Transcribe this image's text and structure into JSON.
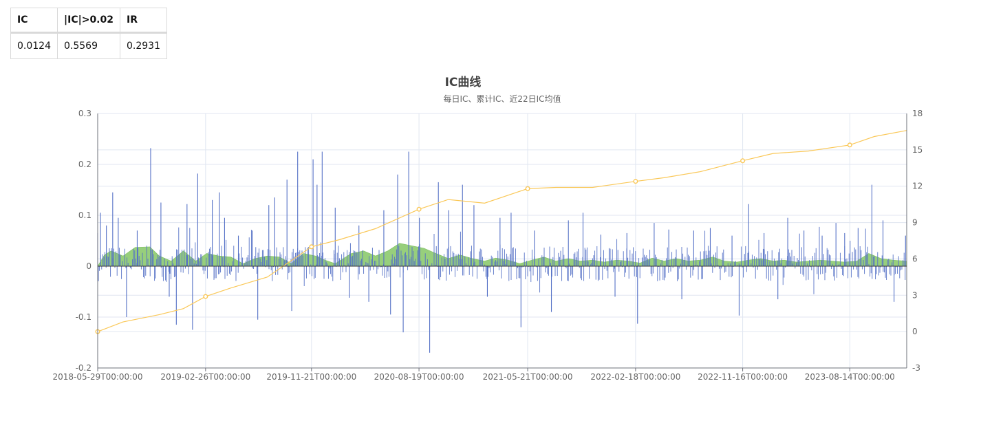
{
  "stats_table": {
    "headers": [
      "IC",
      "|IC|>0.02",
      "IR"
    ],
    "values": [
      "0.0124",
      "0.5569",
      "0.2931"
    ]
  },
  "chart_data": {
    "type": "bar",
    "title": "IC曲线",
    "subtitle": "每日IC、累计IC、近22日IC均值",
    "x_tick_labels": [
      "2018-05-29T00:00:00",
      "2019-02-26T00:00:00",
      "2019-11-21T00:00:00",
      "2020-08-19T00:00:00",
      "2021-05-21T00:00:00",
      "2022-02-18T00:00:00",
      "2022-11-16T00:00:00",
      "2023-08-14T00:00:00"
    ],
    "x_range": [
      "2018-05-29",
      "2024-01-05"
    ],
    "y_left": {
      "range": [
        -0.2,
        0.3
      ],
      "ticks": [
        "-0.2",
        "-0.1",
        "0",
        "0.1",
        "0.2",
        "0.3"
      ]
    },
    "y_right": {
      "range": [
        -3,
        18
      ],
      "ticks": [
        "-3",
        "0",
        "3",
        "6",
        "9",
        "12",
        "15",
        "18"
      ]
    },
    "grid": true,
    "colors": {
      "daily": "#5470c6",
      "rolling": "#91cc75",
      "cumulative": "#fac858"
    },
    "series": [
      {
        "kind": "bar",
        "axis": "left",
        "color": "#5470c6",
        "description_points": "daily IC spikes (date, value)",
        "spikes": [
          [
            "2018-05-29",
            0.065
          ],
          [
            "2018-06-05",
            0.105
          ],
          [
            "2018-06-20",
            0.08
          ],
          [
            "2018-07-06",
            0.145
          ],
          [
            "2018-07-20",
            0.095
          ],
          [
            "2018-08-10",
            -0.1
          ],
          [
            "2018-09-06",
            0.07
          ],
          [
            "2018-10-10",
            0.232
          ],
          [
            "2018-11-05",
            0.125
          ],
          [
            "2018-11-26",
            -0.06
          ],
          [
            "2018-12-14",
            -0.115
          ],
          [
            "2019-01-10",
            0.122
          ],
          [
            "2019-01-24",
            -0.125
          ],
          [
            "2019-02-06",
            0.182
          ],
          [
            "2019-03-15",
            0.13
          ],
          [
            "2019-04-02",
            0.145
          ],
          [
            "2019-04-15",
            0.095
          ],
          [
            "2019-05-20",
            0.06
          ],
          [
            "2019-06-24",
            0.07
          ],
          [
            "2019-07-08",
            -0.105
          ],
          [
            "2019-08-05",
            0.12
          ],
          [
            "2019-08-20",
            0.135
          ],
          [
            "2019-09-20",
            0.17
          ],
          [
            "2019-10-02",
            -0.088
          ],
          [
            "2019-10-17",
            0.225
          ],
          [
            "2019-11-25",
            0.21
          ],
          [
            "2019-12-05",
            0.16
          ],
          [
            "2019-12-18",
            0.225
          ],
          [
            "2020-01-20",
            0.115
          ],
          [
            "2020-02-25",
            -0.062
          ],
          [
            "2020-03-20",
            0.08
          ],
          [
            "2020-04-14",
            -0.07
          ],
          [
            "2020-05-22",
            0.11
          ],
          [
            "2020-06-08",
            -0.095
          ],
          [
            "2020-06-26",
            0.18
          ],
          [
            "2020-07-10",
            -0.13
          ],
          [
            "2020-07-24",
            0.225
          ],
          [
            "2020-08-20",
            0.095
          ],
          [
            "2020-09-15",
            -0.17
          ],
          [
            "2020-10-07",
            0.165
          ],
          [
            "2020-11-02",
            0.11
          ],
          [
            "2020-12-07",
            0.16
          ],
          [
            "2021-01-05",
            0.12
          ],
          [
            "2021-02-08",
            -0.06
          ],
          [
            "2021-03-12",
            0.095
          ],
          [
            "2021-04-09",
            0.105
          ],
          [
            "2021-05-04",
            -0.12
          ],
          [
            "2021-06-07",
            0.07
          ],
          [
            "2021-07-20",
            -0.09
          ],
          [
            "2021-09-01",
            0.09
          ],
          [
            "2021-10-08",
            0.105
          ],
          [
            "2021-11-22",
            0.062
          ],
          [
            "2021-12-28",
            -0.06
          ],
          [
            "2022-01-27",
            0.065
          ],
          [
            "2022-02-23",
            -0.113
          ],
          [
            "2022-04-06",
            0.085
          ],
          [
            "2022-05-13",
            0.072
          ],
          [
            "2022-06-15",
            -0.065
          ],
          [
            "2022-07-15",
            0.07
          ],
          [
            "2022-08-26",
            0.075
          ],
          [
            "2022-10-20",
            0.06
          ],
          [
            "2022-11-07",
            -0.097
          ],
          [
            "2022-12-01",
            0.122
          ],
          [
            "2023-01-09",
            0.065
          ],
          [
            "2023-02-13",
            -0.065
          ],
          [
            "2023-03-10",
            0.095
          ],
          [
            "2023-04-20",
            0.07
          ],
          [
            "2023-06-05",
            0.06
          ],
          [
            "2023-07-10",
            0.085
          ],
          [
            "2023-08-01",
            0.065
          ],
          [
            "2023-09-04",
            0.075
          ],
          [
            "2023-10-09",
            0.16
          ],
          [
            "2023-11-06",
            0.09
          ],
          [
            "2023-12-04",
            -0.07
          ],
          [
            "2024-01-02",
            0.06
          ]
        ]
      },
      {
        "kind": "area",
        "axis": "left",
        "color": "#91cc75",
        "description_points": "22-day rolling mean IC (date, value)",
        "points": [
          [
            "2018-05-29",
            0.0
          ],
          [
            "2018-06-15",
            0.022
          ],
          [
            "2018-07-02",
            0.03
          ],
          [
            "2018-08-01",
            0.02
          ],
          [
            "2018-09-01",
            0.037
          ],
          [
            "2018-10-08",
            0.038
          ],
          [
            "2018-11-01",
            0.02
          ],
          [
            "2018-12-01",
            0.01
          ],
          [
            "2019-01-01",
            0.03
          ],
          [
            "2019-02-01",
            0.01
          ],
          [
            "2019-03-01",
            0.025
          ],
          [
            "2019-04-01",
            0.02
          ],
          [
            "2019-05-01",
            0.018
          ],
          [
            "2019-06-01",
            0.005
          ],
          [
            "2019-07-01",
            0.015
          ],
          [
            "2019-08-01",
            0.02
          ],
          [
            "2019-09-01",
            0.018
          ],
          [
            "2019-10-01",
            0.005
          ],
          [
            "2019-11-01",
            0.025
          ],
          [
            "2019-12-01",
            0.02
          ],
          [
            "2019-12-25",
            0.012
          ],
          [
            "2020-01-20",
            0.005
          ],
          [
            "2020-03-01",
            0.025
          ],
          [
            "2020-04-01",
            0.03
          ],
          [
            "2020-05-01",
            0.02
          ],
          [
            "2020-06-01",
            0.03
          ],
          [
            "2020-07-01",
            0.045
          ],
          [
            "2020-08-01",
            0.04
          ],
          [
            "2020-09-01",
            0.035
          ],
          [
            "2020-10-01",
            0.025
          ],
          [
            "2020-11-01",
            0.015
          ],
          [
            "2020-12-01",
            0.022
          ],
          [
            "2021-01-01",
            0.015
          ],
          [
            "2021-02-01",
            0.01
          ],
          [
            "2021-03-01",
            0.016
          ],
          [
            "2021-04-01",
            0.012
          ],
          [
            "2021-05-01",
            0.005
          ],
          [
            "2021-06-01",
            0.012
          ],
          [
            "2021-07-01",
            0.018
          ],
          [
            "2021-08-01",
            0.01
          ],
          [
            "2021-09-01",
            0.015
          ],
          [
            "2021-10-01",
            0.01
          ],
          [
            "2021-11-01",
            0.012
          ],
          [
            "2021-12-01",
            0.008
          ],
          [
            "2022-01-01",
            0.012
          ],
          [
            "2022-02-01",
            0.01
          ],
          [
            "2022-03-01",
            0.006
          ],
          [
            "2022-04-01",
            0.016
          ],
          [
            "2022-05-01",
            0.01
          ],
          [
            "2022-06-01",
            0.015
          ],
          [
            "2022-07-01",
            0.01
          ],
          [
            "2022-08-01",
            0.012
          ],
          [
            "2022-09-01",
            0.018
          ],
          [
            "2022-10-01",
            0.01
          ],
          [
            "2022-11-01",
            0.008
          ],
          [
            "2022-12-01",
            0.012
          ],
          [
            "2023-01-01",
            0.015
          ],
          [
            "2023-02-01",
            0.01
          ],
          [
            "2023-03-01",
            0.012
          ],
          [
            "2023-04-01",
            0.008
          ],
          [
            "2023-05-01",
            0.01
          ],
          [
            "2023-06-01",
            0.012
          ],
          [
            "2023-07-01",
            0.01
          ],
          [
            "2023-08-01",
            0.008
          ],
          [
            "2023-09-01",
            0.01
          ],
          [
            "2023-10-01",
            0.025
          ],
          [
            "2023-11-01",
            0.015
          ],
          [
            "2023-12-01",
            0.012
          ],
          [
            "2024-01-05",
            0.01
          ]
        ]
      },
      {
        "kind": "line",
        "axis": "right",
        "color": "#fac858",
        "description_points": "cumulative IC (date, value)",
        "points": [
          [
            "2018-05-29",
            0.0
          ],
          [
            "2018-08-01",
            0.8
          ],
          [
            "2018-11-01",
            1.4
          ],
          [
            "2019-01-01",
            1.9
          ],
          [
            "2019-02-26",
            2.9
          ],
          [
            "2019-05-01",
            3.6
          ],
          [
            "2019-08-01",
            4.5
          ],
          [
            "2019-11-21",
            7.0
          ],
          [
            "2020-02-01",
            7.6
          ],
          [
            "2020-05-01",
            8.5
          ],
          [
            "2020-08-19",
            10.1
          ],
          [
            "2020-11-01",
            10.9
          ],
          [
            "2021-02-01",
            10.6
          ],
          [
            "2021-05-21",
            11.8
          ],
          [
            "2021-08-01",
            11.9
          ],
          [
            "2021-11-01",
            11.9
          ],
          [
            "2022-02-18",
            12.4
          ],
          [
            "2022-05-01",
            12.7
          ],
          [
            "2022-08-01",
            13.2
          ],
          [
            "2022-11-16",
            14.1
          ],
          [
            "2023-02-01",
            14.7
          ],
          [
            "2023-05-01",
            14.9
          ],
          [
            "2023-08-14",
            15.4
          ],
          [
            "2023-10-15",
            16.1
          ],
          [
            "2024-01-05",
            16.6
          ]
        ],
        "markers": [
          "2018-05-29",
          "2019-02-26",
          "2019-11-21",
          "2020-08-19",
          "2021-05-21",
          "2022-02-18",
          "2022-11-16",
          "2023-08-14"
        ]
      }
    ]
  }
}
